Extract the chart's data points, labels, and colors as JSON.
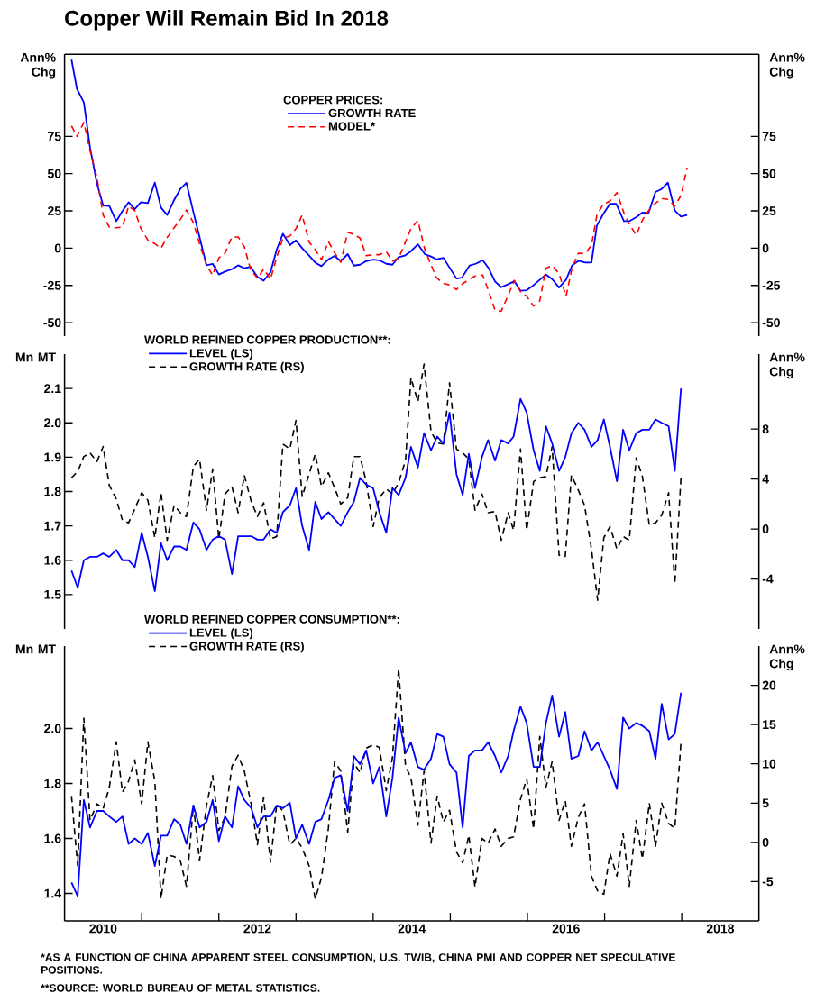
{
  "chart_data": [
    {
      "type": "line",
      "title": "Copper Will Remain Bid In 2018",
      "ylabel": "Ann% Chg",
      "y2label": "Ann% Chg",
      "legend_title": "COPPER PRICES:",
      "legend": "top",
      "tick_labels": "y",
      "xlim": [
        2010,
        2019
      ],
      "ylim": [
        -59,
        130
      ],
      "yticks": [
        -50,
        -25,
        0,
        25,
        50,
        75
      ],
      "y2lim": [
        -59,
        130
      ],
      "y2ticks": [
        -50,
        -25,
        0,
        25,
        50,
        75
      ],
      "series": [
        {
          "name": "GROWTH RATE",
          "color": "#0000ff",
          "line_style": "solid",
          "x": [
            2010.09,
            2010.16,
            2010.25,
            2010.33,
            2010.42,
            2010.5,
            2010.58,
            2010.67,
            2010.75,
            2010.83,
            2010.91,
            2010.99,
            2011.08,
            2011.17,
            2011.25,
            2011.33,
            2011.42,
            2011.5,
            2011.58,
            2011.67,
            2011.84,
            2011.92,
            2012.0,
            2012.08,
            2012.17,
            2012.25,
            2012.33,
            2012.41,
            2012.5,
            2012.58,
            2012.67,
            2012.75,
            2012.83,
            2012.92,
            2013.0,
            2013.08,
            2013.17,
            2013.25,
            2013.33,
            2013.42,
            2013.5,
            2013.58,
            2013.67,
            2013.75,
            2013.83,
            2013.91,
            2014.0,
            2014.08,
            2014.17,
            2014.25,
            2014.33,
            2014.41,
            2014.49,
            2014.58,
            2014.67,
            2014.75,
            2014.82,
            2014.91,
            2015.08,
            2015.15,
            2015.25,
            2015.33,
            2015.42,
            2015.5,
            2015.58,
            2015.66,
            2015.75,
            2015.83,
            2015.91,
            2015.99,
            2016.08,
            2016.24,
            2016.32,
            2016.41,
            2016.5,
            2016.58,
            2016.66,
            2016.75,
            2016.83,
            2016.9,
            2016.98,
            2017.07,
            2017.15,
            2017.25,
            2017.32,
            2017.41,
            2017.49,
            2017.57,
            2017.66,
            2017.74,
            2017.82,
            2017.91,
            2017.99,
            2018.07
          ],
          "values": [
            126.4,
            106.9,
            97.8,
            67.5,
            43.3,
            28.6,
            28.2,
            18.1,
            24.8,
            30.8,
            26.2,
            30.8,
            30.2,
            44.0,
            27.2,
            22.2,
            32.3,
            39.7,
            43.8,
            24.2,
            -11.5,
            -10.5,
            -17.7,
            -15.7,
            -14.1,
            -11.5,
            -13.5,
            -12.5,
            -19.2,
            -21.8,
            -16.1,
            -1.0,
            9.7,
            2.0,
            5.2,
            0.0,
            -5.0,
            -9.7,
            -12.1,
            -7.5,
            -5.2,
            -8.7,
            -4.0,
            -11.7,
            -11.1,
            -8.7,
            -7.7,
            -8.1,
            -10.5,
            -11.1,
            -6.0,
            -5.0,
            -2.0,
            2.6,
            -4.0,
            -5.6,
            -7.5,
            -6.5,
            -20.4,
            -19.8,
            -11.7,
            -10.5,
            -8.1,
            -13.7,
            -22.4,
            -26.2,
            -24.2,
            -22.2,
            -28.6,
            -28.2,
            -24.8,
            -17.7,
            -20.8,
            -26.4,
            -21.2,
            -11.5,
            -8.5,
            -9.7,
            -9.7,
            15.1,
            22.6,
            29.8,
            29.8,
            18.1,
            18.1,
            20.8,
            23.8,
            23.6,
            37.7,
            39.7,
            44.0,
            25.2,
            21.2,
            22.2
          ]
        },
        {
          "name": "MODEL*",
          "color": "#ff0000",
          "line_style": "dashed",
          "x": [
            2010.09,
            2010.16,
            2010.25,
            2010.33,
            2010.42,
            2010.5,
            2010.58,
            2010.67,
            2010.75,
            2010.83,
            2010.91,
            2010.99,
            2011.08,
            2011.17,
            2011.25,
            2011.33,
            2011.42,
            2011.5,
            2011.58,
            2011.67,
            2011.75,
            2011.84,
            2011.92,
            2012.0,
            2012.08,
            2012.17,
            2012.25,
            2012.33,
            2012.41,
            2012.5,
            2012.58,
            2012.67,
            2012.75,
            2012.83,
            2012.92,
            2013.0,
            2013.08,
            2013.17,
            2013.25,
            2013.33,
            2013.42,
            2013.5,
            2013.58,
            2013.67,
            2013.75,
            2013.83,
            2013.91,
            2014.0,
            2014.08,
            2014.17,
            2014.25,
            2014.33,
            2014.41,
            2014.49,
            2014.58,
            2014.67,
            2014.75,
            2014.82,
            2014.91,
            2015.0,
            2015.08,
            2015.16,
            2015.25,
            2015.33,
            2015.42,
            2015.5,
            2015.58,
            2015.66,
            2015.75,
            2015.83,
            2015.91,
            2015.99,
            2016.08,
            2016.16,
            2016.24,
            2016.32,
            2016.41,
            2016.5,
            2016.58,
            2016.66,
            2016.75,
            2016.83,
            2016.9,
            2016.98,
            2017.07,
            2017.16,
            2017.25,
            2017.32,
            2017.41,
            2017.49,
            2017.57,
            2017.66,
            2017.74,
            2017.82,
            2017.91,
            2017.99,
            2018.07
          ],
          "values": [
            82.1,
            75.0,
            84.3,
            65.5,
            47.4,
            22.2,
            14.1,
            13.7,
            14.1,
            28.2,
            25.2,
            13.1,
            5.4,
            3.0,
            0.0,
            7.1,
            13.7,
            19.2,
            25.6,
            17.1,
            3.0,
            -11.5,
            -18.1,
            -6.5,
            -3.4,
            7.5,
            7.5,
            1.0,
            -14.1,
            -20.2,
            -14.1,
            -20.8,
            -6.0,
            6.7,
            8.1,
            13.1,
            22.2,
            4.0,
            -1.0,
            -7.7,
            4.4,
            -3.0,
            -9.5,
            10.7,
            9.1,
            6.7,
            -5.0,
            -4.4,
            -4.4,
            -2.4,
            -8.7,
            -6.7,
            3.0,
            13.1,
            18.5,
            -1.0,
            -11.1,
            -19.8,
            -23.6,
            -24.8,
            -27.8,
            -23.8,
            -20.8,
            -18.5,
            -18.1,
            -29.2,
            -41.7,
            -42.3,
            -31.7,
            -21.6,
            -29.2,
            -32.3,
            -38.9,
            -35.3,
            -13.5,
            -11.7,
            -17.1,
            -32.3,
            -13.1,
            -3.4,
            -3.6,
            2.0,
            22.2,
            29.2,
            31.7,
            37.3,
            23.6,
            16.1,
            8.7,
            18.8,
            25.2,
            30.2,
            33.3,
            32.7,
            28.2,
            35.3,
            54.0
          ]
        }
      ]
    },
    {
      "type": "line",
      "ylabel": "Mn MT",
      "y2label": "Ann% Chg",
      "legend_title": "WORLD REFINED COPPER PRODUCTION**:",
      "legend": "top left",
      "tick_labels": "y",
      "xlim": [
        2010,
        2019
      ],
      "ylim": [
        1.4,
        2.2
      ],
      "yticks": [
        1.5,
        1.6,
        1.7,
        1.8,
        1.9,
        {
          "value": 2.0,
          "label": "2.0"
        },
        2.1
      ],
      "y2lim": [
        -8,
        14
      ],
      "y2ticks": [
        -4,
        0,
        4,
        8
      ],
      "series": [
        {
          "name": "LEVEL (LS)",
          "color": "#0000ff",
          "line_style": "solid",
          "x": [
            2010.09,
            2010.17,
            2010.25,
            2010.33,
            2010.42,
            2010.5,
            2010.58,
            2010.67,
            2010.75,
            2010.83,
            2010.91,
            2011.0,
            2011.08,
            2011.17,
            2011.25,
            2011.33,
            2011.42,
            2011.5,
            2011.58,
            2011.67,
            2011.75,
            2011.84,
            2011.92,
            2012.0,
            2012.08,
            2012.17,
            2012.25,
            2012.33,
            2012.42,
            2012.5,
            2012.58,
            2012.67,
            2012.75,
            2012.83,
            2012.92,
            2013.0,
            2013.08,
            2013.17,
            2013.25,
            2013.33,
            2013.42,
            2013.5,
            2013.58,
            2013.67,
            2013.75,
            2013.83,
            2013.91,
            2014.0,
            2014.08,
            2014.17,
            2014.25,
            2014.33,
            2014.42,
            2014.49,
            2014.58,
            2014.66,
            2014.75,
            2014.83,
            2014.91,
            2014.99,
            2015.08,
            2015.16,
            2015.24,
            2015.32,
            2015.41,
            2015.49,
            2015.58,
            2015.66,
            2015.75,
            2015.82,
            2015.91,
            2015.99,
            2016.08,
            2016.16,
            2016.24,
            2016.32,
            2016.41,
            2016.49,
            2016.57,
            2016.66,
            2016.74,
            2016.83,
            2016.91,
            2016.99,
            2017.07,
            2017.16,
            2017.24,
            2017.32,
            2017.41,
            2017.49,
            2017.58,
            2017.66,
            2017.74,
            2017.83,
            2017.91,
            2017.99
          ],
          "values": [
            1.57,
            1.52,
            1.6,
            1.61,
            1.61,
            1.62,
            1.61,
            1.63,
            1.6,
            1.6,
            1.58,
            1.68,
            1.61,
            1.51,
            1.65,
            1.6,
            1.64,
            1.64,
            1.63,
            1.71,
            1.69,
            1.63,
            1.66,
            1.67,
            1.66,
            1.56,
            1.67,
            1.67,
            1.67,
            1.66,
            1.66,
            1.69,
            1.68,
            1.74,
            1.76,
            1.81,
            1.7,
            1.63,
            1.77,
            1.72,
            1.74,
            1.72,
            1.7,
            1.74,
            1.77,
            1.84,
            1.82,
            1.81,
            1.74,
            1.68,
            1.81,
            1.79,
            1.84,
            1.93,
            1.87,
            1.97,
            1.92,
            1.96,
            1.94,
            2.03,
            1.85,
            1.79,
            1.91,
            1.81,
            1.9,
            1.95,
            1.89,
            1.95,
            1.94,
            1.96,
            2.07,
            2.03,
            1.92,
            1.86,
            1.99,
            1.94,
            1.86,
            1.9,
            1.97,
            2.0,
            1.98,
            1.93,
            1.95,
            2.01,
            1.93,
            1.83,
            1.98,
            1.92,
            1.97,
            1.98,
            1.98,
            2.01,
            2.0,
            1.99,
            1.86,
            2.1
          ]
        },
        {
          "name": "GROWTH RATE (RS)",
          "color": "#000000",
          "line_style": "dashed",
          "axis": "y2",
          "x": [
            2010.09,
            2010.17,
            2010.25,
            2010.33,
            2010.42,
            2010.5,
            2010.58,
            2010.67,
            2010.75,
            2010.83,
            2010.91,
            2011.0,
            2011.08,
            2011.17,
            2011.25,
            2011.33,
            2011.42,
            2011.5,
            2011.58,
            2011.67,
            2011.75,
            2011.84,
            2011.92,
            2012.0,
            2012.08,
            2012.17,
            2012.25,
            2012.33,
            2012.42,
            2012.5,
            2012.58,
            2012.67,
            2012.75,
            2012.83,
            2012.92,
            2013.0,
            2013.08,
            2013.17,
            2013.25,
            2013.33,
            2013.42,
            2013.5,
            2013.58,
            2013.67,
            2013.75,
            2013.83,
            2013.91,
            2014.0,
            2014.08,
            2014.17,
            2014.25,
            2014.33,
            2014.42,
            2014.49,
            2014.58,
            2014.66,
            2014.75,
            2014.83,
            2014.91,
            2014.99,
            2015.08,
            2015.16,
            2015.24,
            2015.32,
            2015.41,
            2015.49,
            2015.58,
            2015.66,
            2015.75,
            2015.82,
            2015.91,
            2015.99,
            2016.08,
            2016.16,
            2016.24,
            2016.32,
            2016.41,
            2016.49,
            2016.57,
            2016.66,
            2016.74,
            2016.83,
            2016.91,
            2016.99,
            2017.07,
            2017.16,
            2017.24,
            2017.32,
            2017.41,
            2017.49,
            2017.58,
            2017.66,
            2017.74,
            2017.83,
            2017.91,
            2017.99
          ],
          "values": [
            4.1,
            4.6,
            5.8,
            6.1,
            5.4,
            6.6,
            3.5,
            2.4,
            0.7,
            0.5,
            1.6,
            2.9,
            2.3,
            -0.7,
            2.9,
            -0.9,
            1.9,
            1.3,
            1.0,
            5.0,
            5.6,
            1.5,
            4.8,
            -0.8,
            2.8,
            3.4,
            1.3,
            4.3,
            2.2,
            1.0,
            2.1,
            -0.8,
            -0.6,
            6.8,
            6.4,
            8.7,
            2.6,
            4.4,
            6.0,
            3.4,
            4.5,
            3.3,
            2.0,
            2.5,
            5.8,
            5.8,
            3.8,
            0.2,
            2.5,
            3.2,
            2.8,
            3.7,
            5.5,
            12.1,
            10.2,
            13.2,
            7.8,
            6.9,
            6.8,
            11.7,
            6.4,
            6.1,
            5.6,
            1.5,
            2.8,
            1.3,
            1.4,
            -0.9,
            1.3,
            -0.1,
            6.4,
            -0.1,
            3.8,
            4.1,
            4.2,
            6.6,
            -2.1,
            -2.2,
            4.3,
            3.1,
            1.9,
            -1.6,
            -5.7,
            -0.7,
            0.2,
            -1.6,
            -0.6,
            -0.9,
            5.7,
            4.2,
            0.3,
            0.5,
            1.1,
            2.9,
            -4.4,
            4.1
          ]
        }
      ]
    },
    {
      "type": "line",
      "ylabel": "Mn MT",
      "y2label": "Ann% Chg",
      "legend_title": "WORLD REFINED COPPER CONSUMPTION**:",
      "legend": "top left",
      "xlim": [
        2010,
        2019
      ],
      "xticks": [
        {
          "value": 2010.5,
          "label": "2010"
        },
        {
          "value": 2011,
          "label": null
        },
        {
          "value": 2012,
          "label": null
        },
        {
          "value": 2012.5,
          "label": "2012"
        },
        {
          "value": 2013,
          "label": null
        },
        {
          "value": 2014,
          "label": null
        },
        {
          "value": 2014.5,
          "label": "2014"
        },
        {
          "value": 2015,
          "label": null
        },
        {
          "value": 2016,
          "label": null
        },
        {
          "value": 2016.5,
          "label": "2016"
        },
        {
          "value": 2017,
          "label": null
        },
        {
          "value": 2018,
          "label": null
        },
        {
          "value": 2018.5,
          "label": "2018"
        }
      ],
      "ylim": [
        1.3,
        2.3
      ],
      "yticks": [
        1.4,
        1.6,
        1.8,
        {
          "value": 2.0,
          "label": "2.0"
        }
      ],
      "y2lim": [
        -10,
        25
      ],
      "y2ticks": [
        -5,
        0,
        5,
        10,
        15,
        20
      ],
      "annotations": [
        "*AS A FUNCTION OF CHINA APPARENT STEEL CONSUMPTION, U.S. TWIB, CHINA PMI AND COPPER NET SPECULATIVE POSITIONS.",
        "**SOURCE: WORLD BUREAU OF METAL STATISTICS."
      ],
      "series": [
        {
          "name": "LEVEL (LS)",
          "color": "#0000ff",
          "line_style": "solid",
          "x": [
            2010.09,
            2010.17,
            2010.25,
            2010.33,
            2010.42,
            2010.5,
            2010.58,
            2010.67,
            2010.75,
            2010.83,
            2010.91,
            2011.0,
            2011.08,
            2011.17,
            2011.25,
            2011.33,
            2011.42,
            2011.5,
            2011.58,
            2011.67,
            2011.75,
            2011.84,
            2011.92,
            2012.0,
            2012.08,
            2012.17,
            2012.25,
            2012.33,
            2012.42,
            2012.5,
            2012.58,
            2012.67,
            2012.75,
            2012.83,
            2012.92,
            2013.0,
            2013.08,
            2013.17,
            2013.25,
            2013.33,
            2013.42,
            2013.5,
            2013.58,
            2013.67,
            2013.75,
            2013.83,
            2013.91,
            2014.0,
            2014.08,
            2014.17,
            2014.25,
            2014.33,
            2014.42,
            2014.49,
            2014.58,
            2014.66,
            2014.75,
            2014.83,
            2014.91,
            2014.99,
            2015.08,
            2015.16,
            2015.24,
            2015.32,
            2015.41,
            2015.49,
            2015.58,
            2015.66,
            2015.75,
            2015.82,
            2015.91,
            2015.99,
            2016.08,
            2016.16,
            2016.24,
            2016.32,
            2016.41,
            2016.49,
            2016.57,
            2016.66,
            2016.74,
            2016.83,
            2016.91,
            2016.99,
            2017.07,
            2017.16,
            2017.24,
            2017.32,
            2017.41,
            2017.49,
            2017.58,
            2017.66,
            2017.74,
            2017.83,
            2017.91,
            2017.99
          ],
          "values": [
            1.44,
            1.39,
            1.74,
            1.64,
            1.7,
            1.7,
            1.68,
            1.66,
            1.68,
            1.58,
            1.6,
            1.58,
            1.62,
            1.5,
            1.61,
            1.61,
            1.67,
            1.65,
            1.58,
            1.72,
            1.64,
            1.66,
            1.74,
            1.59,
            1.68,
            1.64,
            1.79,
            1.74,
            1.71,
            1.64,
            1.68,
            1.68,
            1.72,
            1.71,
            1.73,
            1.6,
            1.65,
            1.58,
            1.66,
            1.67,
            1.74,
            1.82,
            1.83,
            1.7,
            1.9,
            1.87,
            1.92,
            1.8,
            1.86,
            1.68,
            1.82,
            2.04,
            1.91,
            1.95,
            1.86,
            1.85,
            1.89,
            1.98,
            1.97,
            1.87,
            1.84,
            1.64,
            1.9,
            1.92,
            1.92,
            1.95,
            1.9,
            1.84,
            1.9,
            1.99,
            2.08,
            2.02,
            1.86,
            1.86,
            2.02,
            2.12,
            1.97,
            2.06,
            1.89,
            1.9,
            1.99,
            1.92,
            1.95,
            1.9,
            1.85,
            1.78,
            2.04,
            2.0,
            2.02,
            2.01,
            1.99,
            1.89,
            2.09,
            1.96,
            1.98,
            2.13
          ]
        },
        {
          "name": "GROWTH RATE (RS)",
          "color": "#000000",
          "line_style": "dashed",
          "axis": "y2",
          "x": [
            2010.09,
            2010.17,
            2010.25,
            2010.33,
            2010.42,
            2010.5,
            2010.58,
            2010.67,
            2010.75,
            2010.83,
            2010.91,
            2011.0,
            2011.08,
            2011.17,
            2011.25,
            2011.33,
            2011.42,
            2011.5,
            2011.58,
            2011.67,
            2011.75,
            2011.84,
            2011.92,
            2012.0,
            2012.08,
            2012.17,
            2012.25,
            2012.33,
            2012.42,
            2012.5,
            2012.58,
            2012.67,
            2012.75,
            2012.83,
            2012.92,
            2013.0,
            2013.08,
            2013.17,
            2013.25,
            2013.33,
            2013.42,
            2013.5,
            2013.58,
            2013.67,
            2013.75,
            2013.83,
            2013.91,
            2014.0,
            2014.08,
            2014.17,
            2014.25,
            2014.33,
            2014.42,
            2014.49,
            2014.58,
            2014.66,
            2014.75,
            2014.83,
            2014.91,
            2014.99,
            2015.08,
            2015.16,
            2015.24,
            2015.32,
            2015.41,
            2015.49,
            2015.58,
            2015.66,
            2015.75,
            2015.82,
            2015.91,
            2015.99,
            2016.08,
            2016.16,
            2016.24,
            2016.32,
            2016.41,
            2016.49,
            2016.57,
            2016.66,
            2016.74,
            2016.83,
            2016.91,
            2016.99,
            2017.07,
            2017.16,
            2017.24,
            2017.32,
            2017.41,
            2017.49,
            2017.58,
            2017.66,
            2017.74,
            2017.83,
            2017.91,
            2017.99
          ],
          "values": [
            5.9,
            -3.0,
            15.8,
            2.8,
            4.9,
            4.3,
            7.0,
            12.8,
            6.4,
            7.8,
            10.5,
            4.9,
            12.8,
            7.8,
            -7.2,
            -1.6,
            -1.8,
            -2.3,
            -5.6,
            4.7,
            -2.3,
            4.7,
            8.5,
            1.5,
            3.2,
            9.7,
            11.1,
            9.1,
            4.8,
            -0.3,
            5.7,
            -2.5,
            4.9,
            4.0,
            -0.3,
            0.5,
            -0.7,
            -3.0,
            -7.2,
            -4.5,
            1.8,
            10.3,
            9.1,
            1.3,
            10.1,
            8.9,
            12.0,
            12.4,
            12.1,
            6.6,
            10.8,
            22.1,
            9.7,
            8.2,
            2.2,
            9.1,
            -0.1,
            5.9,
            2.6,
            4.1,
            -1.2,
            -2.6,
            0.9,
            -5.7,
            0.5,
            -0.1,
            1.7,
            -0.5,
            0.5,
            0.7,
            5.5,
            8.1,
            1.7,
            13.5,
            7.0,
            10.3,
            2.8,
            5.3,
            -0.5,
            3.2,
            4.9,
            -4.3,
            -6.2,
            -6.6,
            -1.4,
            -4.3,
            1.1,
            -5.6,
            2.8,
            -2.1,
            5.0,
            -0.5,
            5.0,
            2.4,
            1.8,
            12.7
          ]
        }
      ]
    }
  ]
}
